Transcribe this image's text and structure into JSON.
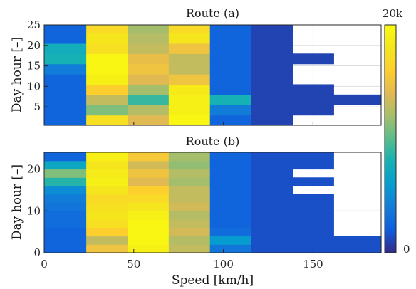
{
  "chart_data": {
    "type": "heatmap",
    "xlabel": "Speed [km/h]",
    "ylabel": "Day hour [–]",
    "x_ticks": [
      "0",
      "50",
      "100",
      "150"
    ],
    "x_tick_values": [
      0,
      50,
      100,
      150
    ],
    "xlim": [
      0,
      188
    ],
    "x_bin_edges": [
      0,
      23.5,
      46.5,
      69.5,
      92.5,
      115.5,
      138.5,
      161.5,
      188
    ],
    "colorbar": {
      "min": 0,
      "max": 20000,
      "min_label": "0",
      "max_label": "20k",
      "colormap": "parula"
    },
    "grid": true,
    "panels": [
      {
        "title": "Route (a)",
        "ylim": [
          0.5,
          25
        ],
        "y_ticks": [
          "5",
          "10",
          "15",
          "20",
          "25"
        ],
        "y_tick_values": [
          5,
          10,
          15,
          20,
          25
        ],
        "row_edges": [
          0.5,
          3,
          5.5,
          8,
          10.5,
          13,
          15.5,
          18,
          20.5,
          23,
          25
        ],
        "rows_bottom_to_top": [
          [
            2500,
            17500,
            14000,
            19500,
            2500,
            1000,
            null,
            null
          ],
          [
            2500,
            11000,
            12500,
            19000,
            4000,
            1000,
            1000,
            null
          ],
          [
            2500,
            13000,
            9000,
            19000,
            8000,
            1000,
            1000,
            1000
          ],
          [
            2500,
            16000,
            12000,
            18500,
            2500,
            1000,
            1000,
            null
          ],
          [
            2500,
            19000,
            14000,
            15000,
            2500,
            1000,
            null,
            null
          ],
          [
            4000,
            19500,
            15000,
            13000,
            2500,
            1000,
            null,
            null
          ],
          [
            8000,
            19500,
            14500,
            13000,
            2500,
            1000,
            1000,
            null
          ],
          [
            7500,
            17500,
            13000,
            15000,
            2500,
            1000,
            null,
            null
          ],
          [
            2500,
            18000,
            12500,
            18000,
            2500,
            1000,
            null,
            null
          ],
          [
            2500,
            17000,
            12000,
            17000,
            2500,
            1000,
            null,
            null
          ]
        ]
      },
      {
        "title": "Route (b)",
        "ylim": [
          0,
          24
        ],
        "y_ticks": [
          "0",
          "10",
          "20"
        ],
        "y_tick_values": [
          0,
          10,
          20
        ],
        "row_edges": [
          0,
          2,
          4,
          6,
          8,
          10,
          12,
          14,
          16,
          18,
          20,
          22,
          24
        ],
        "rows_bottom_to_top": [
          [
            2500,
            15000,
            19000,
            13000,
            3500,
            1500,
            1500,
            1500
          ],
          [
            2500,
            13000,
            19500,
            12500,
            6000,
            1500,
            1500,
            1500
          ],
          [
            2500,
            16000,
            19500,
            13500,
            3000,
            1500,
            1500,
            null
          ],
          [
            3000,
            17500,
            19500,
            13000,
            2500,
            1500,
            1500,
            null
          ],
          [
            3000,
            18000,
            19000,
            12500,
            2500,
            1500,
            1500,
            null
          ],
          [
            3500,
            17500,
            18000,
            13500,
            2500,
            1500,
            1500,
            null
          ],
          [
            4000,
            17000,
            17000,
            13000,
            2500,
            1500,
            1500,
            null
          ],
          [
            5000,
            18000,
            16000,
            13000,
            2500,
            1500,
            null,
            null
          ],
          [
            8500,
            19000,
            14000,
            12000,
            2500,
            1500,
            1500,
            null
          ],
          [
            11000,
            18500,
            15000,
            12500,
            2500,
            1500,
            null,
            null
          ],
          [
            7000,
            18000,
            13500,
            11500,
            2500,
            1500,
            1500,
            null
          ],
          [
            2500,
            19000,
            15500,
            12000,
            2500,
            1500,
            1500,
            null
          ]
        ]
      }
    ]
  }
}
